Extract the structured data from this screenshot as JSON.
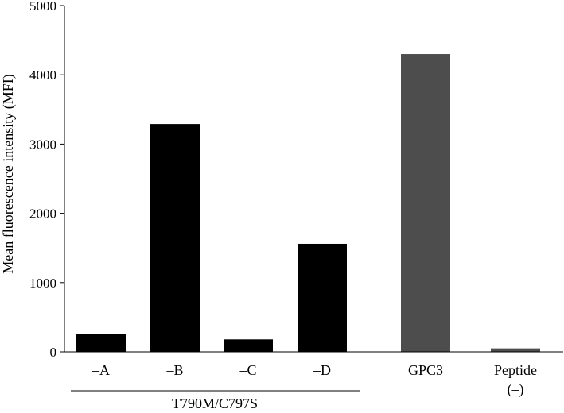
{
  "chart_data": {
    "type": "bar",
    "ylabel": "Mean fluorescence intensity (MFI)",
    "ylim": [
      0,
      5000
    ],
    "yticks": [
      0,
      1000,
      2000,
      3000,
      4000,
      5000
    ],
    "grid": false,
    "categories": [
      {
        "label": "–A",
        "value": 260,
        "color": "#000000"
      },
      {
        "label": "–B",
        "value": 3290,
        "color": "#000000"
      },
      {
        "label": "–C",
        "value": 180,
        "color": "#000000"
      },
      {
        "label": "–D",
        "value": 1560,
        "color": "#000000"
      },
      {
        "label": "GPC3",
        "value": 4300,
        "color": "#4d4d4d"
      },
      {
        "label": "Peptide\n(–)",
        "value": 50,
        "color": "#4d4d4d"
      }
    ],
    "group_label": {
      "text": "T790M/C797S",
      "spans": [
        "–A",
        "–B",
        "–C",
        "–D"
      ]
    }
  }
}
